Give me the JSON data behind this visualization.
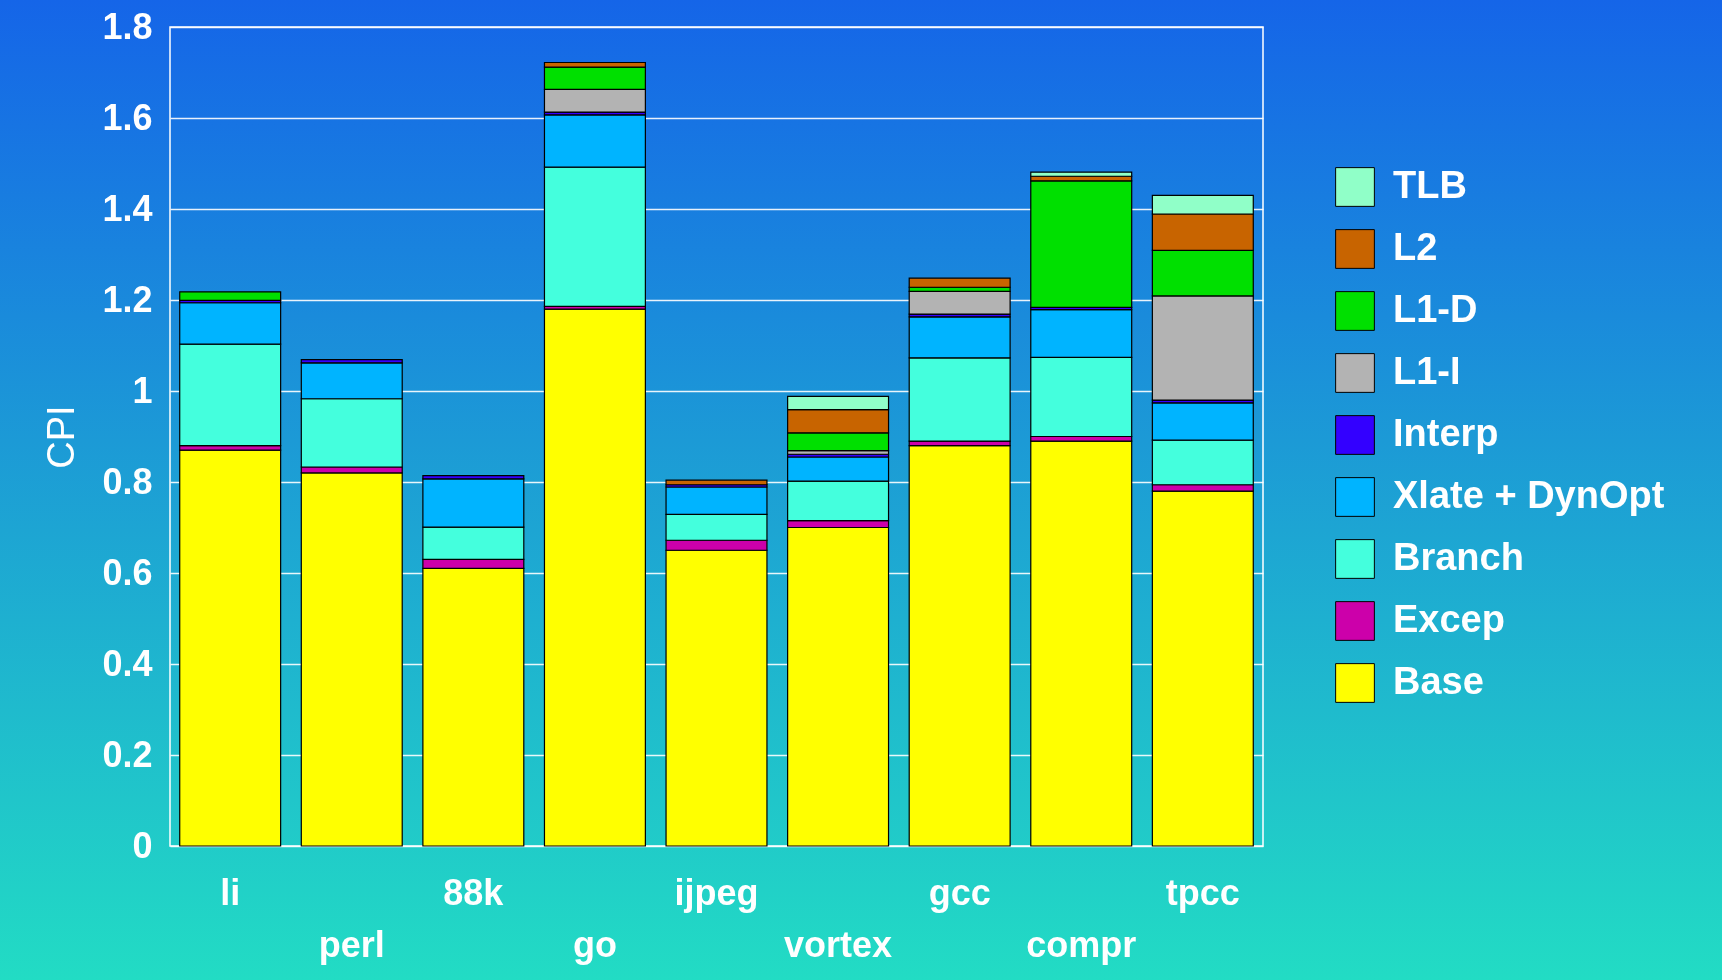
{
  "chart_data": {
    "type": "bar",
    "stacked": true,
    "ylabel": "CPI",
    "categories": [
      "li",
      "perl",
      "88k",
      "go",
      "ijpeg",
      "vortex",
      "gcc",
      "compr",
      "tpcc"
    ],
    "series": [
      {
        "name": "Base",
        "color": "#ffff00",
        "values": [
          0.87,
          0.82,
          0.61,
          1.18,
          0.65,
          0.7,
          0.88,
          0.89,
          0.78
        ]
      },
      {
        "name": "Excep",
        "color": "#cc00aa",
        "values": [
          0.01,
          0.013,
          0.02,
          0.006,
          0.022,
          0.015,
          0.01,
          0.01,
          0.014
        ]
      },
      {
        "name": "Branch",
        "color": "#44ffdd",
        "values": [
          0.223,
          0.15,
          0.071,
          0.306,
          0.057,
          0.087,
          0.183,
          0.174,
          0.098
        ]
      },
      {
        "name": "Xlate + DynOpt",
        "color": "#00b4ff",
        "values": [
          0.091,
          0.079,
          0.106,
          0.115,
          0.06,
          0.053,
          0.09,
          0.105,
          0.082
        ]
      },
      {
        "name": "Interp",
        "color": "#3300ff",
        "values": [
          0.005,
          0.007,
          0.007,
          0.006,
          0.005,
          0.006,
          0.006,
          0.005,
          0.006
        ]
      },
      {
        "name": "L1-I",
        "color": "#b3b3b3",
        "values": [
          0,
          0,
          0,
          0.05,
          0,
          0.008,
          0.05,
          0,
          0.229
        ]
      },
      {
        "name": "L1-D",
        "color": "#00e000",
        "values": [
          0.019,
          0,
          0,
          0.049,
          0,
          0.039,
          0.009,
          0.278,
          0.1
        ]
      },
      {
        "name": "L2",
        "color": "#c86400",
        "values": [
          0,
          0,
          0,
          0.01,
          0.01,
          0.051,
          0.02,
          0.01,
          0.08
        ]
      },
      {
        "name": "TLB",
        "color": "#90ffc8",
        "values": [
          0,
          0,
          0,
          0,
          0,
          0.029,
          0,
          0.009,
          0.041
        ]
      }
    ],
    "ylim": [
      0,
      1.8
    ],
    "yticks": [
      0,
      0.2,
      0.4,
      0.6,
      0.8,
      1,
      1.2,
      1.4,
      1.6,
      1.8
    ],
    "grid": "y",
    "legend": "right"
  }
}
